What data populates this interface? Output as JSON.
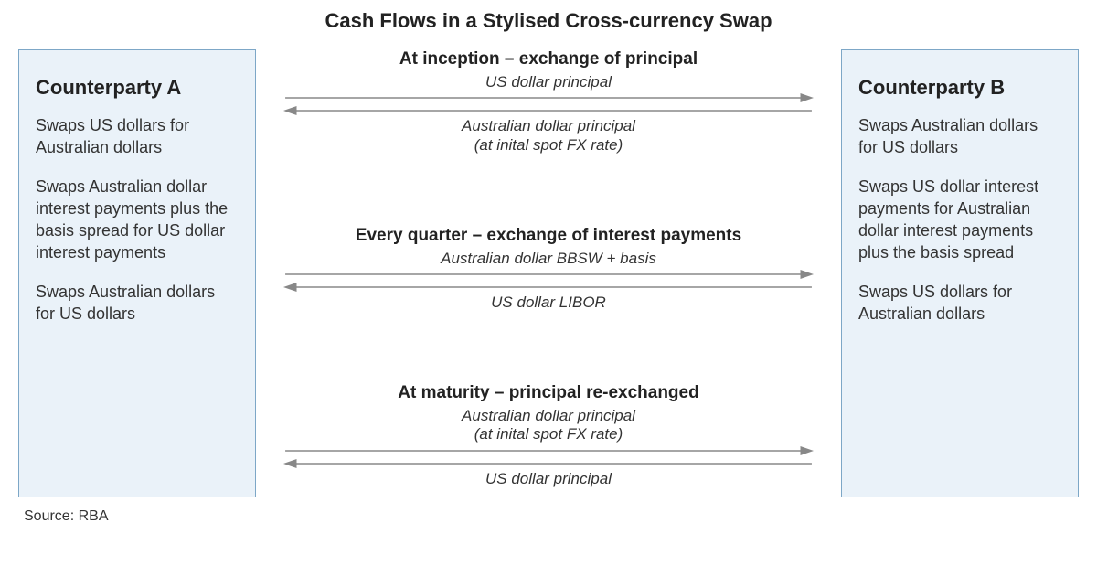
{
  "title": "Cash Flows in a Stylised Cross-currency Swap",
  "source": "Source: RBA",
  "colors": {
    "box_bg": "#eaf2f9",
    "box_border": "#7da7c7",
    "arrow": "#888888",
    "text": "#333333",
    "heading": "#222222",
    "page_bg": "#ffffff"
  },
  "partyA": {
    "title": "Counterparty A",
    "items": [
      "Swaps US dollars for Australian dollars",
      "Swaps Australian dollar interest payments plus the basis spread for US dollar interest payments",
      "Swaps Australian dollars for US dollars"
    ]
  },
  "partyB": {
    "title": "Counterparty B",
    "items": [
      "Swaps Australian dollars for US dollars",
      "Swaps US dollar interest payments for Australian dollar interest payments plus the basis spread",
      "Swaps US dollars for Australian dollars"
    ]
  },
  "exchanges": [
    {
      "heading": "At inception – exchange of principal",
      "top_label": "US dollar principal",
      "top_arrow_direction": "right",
      "bottom_label": "Australian dollar principal\n(at inital spot FX rate)",
      "bottom_arrow_direction": "left"
    },
    {
      "heading": "Every quarter – exchange of interest payments",
      "top_label": "Australian dollar BBSW + basis",
      "top_arrow_direction": "right",
      "bottom_label": "US dollar LIBOR",
      "bottom_arrow_direction": "left"
    },
    {
      "heading": "At maturity – principal re-exchanged",
      "top_label": "Australian dollar principal\n(at inital spot FX rate)",
      "top_arrow_direction": "right",
      "bottom_label": "US dollar principal",
      "bottom_arrow_direction": "left"
    }
  ]
}
